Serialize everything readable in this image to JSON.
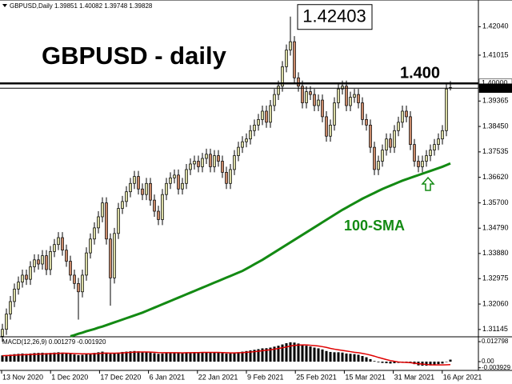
{
  "header": "GBPUSD,Daily  1.39851 1.40082 1.39748 1.39828",
  "chart_data": [
    {
      "type": "candlestick",
      "title": "GBPUSD - daily",
      "up_color": "#d9d9a3",
      "down_color": "#c98a6a",
      "open": [
        1.309,
        1.3115,
        1.317,
        1.3215,
        1.326,
        1.3285,
        1.331,
        1.3295,
        1.334,
        1.3365,
        1.335,
        1.338,
        1.333,
        1.3395,
        1.342,
        1.3445,
        1.34,
        1.336,
        1.331,
        1.328,
        1.325,
        1.331,
        1.339,
        1.344,
        1.348,
        1.352,
        1.357,
        1.344,
        1.33,
        1.346,
        1.355,
        1.3575,
        1.361,
        1.364,
        1.3665,
        1.362,
        1.36,
        1.364,
        1.358,
        1.354,
        1.351,
        1.36,
        1.364,
        1.366,
        1.367,
        1.362,
        1.364,
        1.369,
        1.371,
        1.372,
        1.37,
        1.373,
        1.3745,
        1.37,
        1.374,
        1.372,
        1.368,
        1.364,
        1.369,
        1.374,
        1.377,
        1.379,
        1.38,
        1.383,
        1.385,
        1.387,
        1.39,
        1.386,
        1.392,
        1.396,
        1.399,
        1.406,
        1.412,
        1.415,
        1.402,
        1.399,
        1.393,
        1.397,
        1.396,
        1.392,
        1.394,
        1.388,
        1.381,
        1.385,
        1.393,
        1.398,
        1.399,
        1.392,
        1.395,
        1.396,
        1.393,
        1.387,
        1.385,
        1.377,
        1.369,
        1.372,
        1.376,
        1.38,
        1.377,
        1.383,
        1.386,
        1.39,
        1.388,
        1.378,
        1.372,
        1.37,
        1.372,
        1.374,
        1.376,
        1.378,
        1.38,
        1.383,
        1.39851
      ],
      "high": [
        1.3135,
        1.319,
        1.3235,
        1.328,
        1.3305,
        1.333,
        1.333,
        1.336,
        1.3385,
        1.3385,
        1.34,
        1.34,
        1.3415,
        1.344,
        1.3465,
        1.3465,
        1.342,
        1.338,
        1.333,
        1.33,
        1.333,
        1.341,
        1.346,
        1.35,
        1.354,
        1.359,
        1.359,
        1.346,
        1.348,
        1.357,
        1.3595,
        1.363,
        1.366,
        1.3685,
        1.3685,
        1.364,
        1.366,
        1.366,
        1.36,
        1.356,
        1.362,
        1.366,
        1.368,
        1.369,
        1.369,
        1.366,
        1.371,
        1.373,
        1.374,
        1.374,
        1.375,
        1.3765,
        1.3765,
        1.376,
        1.376,
        1.374,
        1.37,
        1.371,
        1.376,
        1.379,
        1.381,
        1.382,
        1.385,
        1.387,
        1.389,
        1.392,
        1.392,
        1.394,
        1.398,
        1.401,
        1.408,
        1.414,
        1.42403,
        1.417,
        1.404,
        1.401,
        1.399,
        1.399,
        1.398,
        1.396,
        1.396,
        1.39,
        1.387,
        1.395,
        1.4,
        1.401,
        1.401,
        1.397,
        1.398,
        1.398,
        1.395,
        1.389,
        1.387,
        1.379,
        1.374,
        1.378,
        1.382,
        1.382,
        1.385,
        1.388,
        1.392,
        1.392,
        1.39,
        1.38,
        1.374,
        1.374,
        1.376,
        1.378,
        1.38,
        1.382,
        1.385,
        1.4,
        1.40082
      ],
      "low": [
        1.307,
        1.3095,
        1.315,
        1.3195,
        1.324,
        1.3265,
        1.3275,
        1.3275,
        1.332,
        1.333,
        1.333,
        1.331,
        1.331,
        1.3375,
        1.34,
        1.338,
        1.334,
        1.329,
        1.326,
        1.315,
        1.323,
        1.329,
        1.337,
        1.342,
        1.346,
        1.35,
        1.342,
        1.32,
        1.328,
        1.344,
        1.353,
        1.3555,
        1.359,
        1.362,
        1.36,
        1.358,
        1.358,
        1.356,
        1.352,
        1.349,
        1.349,
        1.358,
        1.362,
        1.364,
        1.36,
        1.36,
        1.362,
        1.367,
        1.369,
        1.368,
        1.368,
        1.371,
        1.368,
        1.368,
        1.37,
        1.366,
        1.362,
        1.362,
        1.367,
        1.372,
        1.375,
        1.377,
        1.378,
        1.381,
        1.383,
        1.385,
        1.384,
        1.384,
        1.39,
        1.394,
        1.397,
        1.404,
        1.41,
        1.4,
        1.397,
        1.391,
        1.391,
        1.394,
        1.39,
        1.39,
        1.386,
        1.379,
        1.379,
        1.383,
        1.391,
        1.396,
        1.39,
        1.39,
        1.393,
        1.391,
        1.385,
        1.383,
        1.375,
        1.367,
        1.367,
        1.37,
        1.374,
        1.375,
        1.375,
        1.381,
        1.384,
        1.386,
        1.376,
        1.37,
        1.368,
        1.368,
        1.37,
        1.372,
        1.374,
        1.376,
        1.378,
        1.381,
        1.39748
      ],
      "close": [
        1.3115,
        1.317,
        1.3215,
        1.326,
        1.3285,
        1.331,
        1.3295,
        1.334,
        1.3365,
        1.335,
        1.338,
        1.333,
        1.3395,
        1.342,
        1.3445,
        1.34,
        1.336,
        1.331,
        1.328,
        1.325,
        1.331,
        1.339,
        1.344,
        1.348,
        1.352,
        1.357,
        1.344,
        1.33,
        1.346,
        1.355,
        1.3575,
        1.361,
        1.364,
        1.3665,
        1.362,
        1.36,
        1.364,
        1.358,
        1.354,
        1.351,
        1.36,
        1.364,
        1.366,
        1.367,
        1.362,
        1.364,
        1.369,
        1.371,
        1.372,
        1.37,
        1.373,
        1.3745,
        1.37,
        1.374,
        1.372,
        1.368,
        1.364,
        1.369,
        1.374,
        1.377,
        1.379,
        1.38,
        1.383,
        1.385,
        1.387,
        1.39,
        1.386,
        1.392,
        1.396,
        1.399,
        1.406,
        1.412,
        1.415,
        1.402,
        1.399,
        1.393,
        1.397,
        1.396,
        1.392,
        1.394,
        1.388,
        1.381,
        1.385,
        1.393,
        1.398,
        1.399,
        1.392,
        1.395,
        1.396,
        1.393,
        1.387,
        1.385,
        1.377,
        1.369,
        1.372,
        1.376,
        1.38,
        1.377,
        1.383,
        1.386,
        1.39,
        1.388,
        1.378,
        1.372,
        1.37,
        1.372,
        1.374,
        1.376,
        1.378,
        1.38,
        1.383,
        1.398,
        1.39828
      ],
      "series": [
        {
          "name": "100-SMA",
          "color": "#138a13",
          "values": [
            null,
            null,
            null,
            null,
            null,
            null,
            null,
            null,
            null,
            null,
            null,
            null,
            null,
            null,
            null,
            null,
            null,
            1.309,
            1.3094,
            1.3099,
            1.3103,
            1.3108,
            1.3112,
            1.3116,
            1.3121,
            1.3125,
            1.313,
            1.3135,
            1.314,
            1.3145,
            1.315,
            1.3155,
            1.316,
            1.3165,
            1.317,
            1.3175,
            1.3181,
            1.3187,
            1.3193,
            1.3199,
            1.3205,
            1.3211,
            1.3217,
            1.3223,
            1.3229,
            1.3235,
            1.3241,
            1.3247,
            1.3253,
            1.3259,
            1.3265,
            1.3271,
            1.3277,
            1.3283,
            1.3289,
            1.3295,
            1.3301,
            1.3307,
            1.3313,
            1.3319,
            1.3325,
            1.3333,
            1.3341,
            1.3349,
            1.3357,
            1.3365,
            1.3374,
            1.3383,
            1.3392,
            1.3401,
            1.341,
            1.3419,
            1.3428,
            1.3437,
            1.3446,
            1.3455,
            1.3464,
            1.3473,
            1.3482,
            1.3491,
            1.35,
            1.3509,
            1.3518,
            1.3527,
            1.3536,
            1.3545,
            1.3553,
            1.3561,
            1.3569,
            1.3577,
            1.3585,
            1.3592,
            1.3599,
            1.3606,
            1.3613,
            1.362,
            1.3626,
            1.3632,
            1.3638,
            1.3644,
            1.365,
            1.3655,
            1.366,
            1.3665,
            1.367,
            1.3675,
            1.368,
            1.3685,
            1.369,
            1.3695,
            1.37,
            1.3706,
            1.3712
          ]
        }
      ],
      "ylim": [
        1.3091,
        1.43
      ],
      "yticks": [
        {
          "value": 1.4204,
          "label": "1.42040"
        },
        {
          "value": 1.41015,
          "label": "1.41015"
        },
        {
          "value": 1.39365,
          "label": "1.39365"
        },
        {
          "value": 1.3845,
          "label": "1.38450"
        },
        {
          "value": 1.37535,
          "label": "1.37535"
        },
        {
          "value": 1.3662,
          "label": "1.36620"
        },
        {
          "value": 1.357,
          "label": "1.35700"
        },
        {
          "value": 1.3479,
          "label": "1.34790"
        },
        {
          "value": 1.3388,
          "label": "1.33880"
        },
        {
          "value": 1.32975,
          "label": "1.32975"
        },
        {
          "value": 1.3206,
          "label": "1.32060"
        },
        {
          "value": 1.31145,
          "label": "1.31145"
        }
      ],
      "price_labels": [
        {
          "value": 1.4,
          "label": "1.40000"
        },
        {
          "value": 1.39828,
          "label": "1.39828"
        }
      ],
      "annotations": [
        {
          "value": 1.42403,
          "label": "1.42403"
        },
        {
          "value": 1.4,
          "label": "1.400"
        }
      ],
      "x_labels": [
        "13 Nov 2020",
        "1 Dec 2020",
        "17 Dec 2020",
        "6 Jan 2021",
        "22 Jan 2021",
        "9 Feb 2021",
        "25 Feb 2021",
        "15 Mar 2021",
        "31 Mar 2021",
        "16 Apr 2021"
      ]
    },
    {
      "type": "macd",
      "label": "MACD(12,26,9) 0.001279 -0.001920",
      "histogram_color": "#000000",
      "signal_color": "#e00000",
      "histogram": [
        0.004,
        0.0042,
        0.0045,
        0.0048,
        0.005,
        0.0052,
        0.005,
        0.0052,
        0.0055,
        0.0056,
        0.0057,
        0.0055,
        0.0056,
        0.0058,
        0.006,
        0.0058,
        0.0054,
        0.005,
        0.0046,
        0.0042,
        0.0044,
        0.0048,
        0.0052,
        0.0056,
        0.006,
        0.0064,
        0.0058,
        0.005,
        0.0054,
        0.0058,
        0.0062,
        0.0064,
        0.0066,
        0.0068,
        0.0066,
        0.0063,
        0.0062,
        0.0058,
        0.0054,
        0.005,
        0.0052,
        0.0054,
        0.0056,
        0.0057,
        0.0055,
        0.0055,
        0.0057,
        0.0059,
        0.006,
        0.0059,
        0.006,
        0.0061,
        0.0059,
        0.006,
        0.0058,
        0.0055,
        0.0052,
        0.0053,
        0.0056,
        0.006,
        0.0064,
        0.0068,
        0.0072,
        0.0076,
        0.008,
        0.0085,
        0.0086,
        0.009,
        0.0096,
        0.0102,
        0.011,
        0.0118,
        0.0124,
        0.0122,
        0.0116,
        0.0108,
        0.0102,
        0.0097,
        0.009,
        0.0085,
        0.0078,
        0.0068,
        0.0062,
        0.006,
        0.006,
        0.0058,
        0.0052,
        0.005,
        0.0048,
        0.0044,
        0.0036,
        0.0028,
        0.0016,
        0.0004,
        -0.0004,
        -0.0008,
        -0.001,
        -0.0012,
        -0.001,
        -0.0008,
        -0.0004,
        -0.0002,
        -0.0006,
        -0.0016,
        -0.0024,
        -0.0026,
        -0.0026,
        -0.0024,
        -0.002,
        -0.0016,
        -0.0012,
        -0.0002,
        0.001279
      ],
      "signal": [
        0.0038,
        0.0039,
        0.004,
        0.0041,
        0.0043,
        0.0044,
        0.0045,
        0.0046,
        0.0047,
        0.0048,
        0.0049,
        0.005,
        0.0051,
        0.0052,
        0.0053,
        0.0054,
        0.0054,
        0.0053,
        0.0052,
        0.0051,
        0.005,
        0.005,
        0.005,
        0.0051,
        0.0052,
        0.0054,
        0.0055,
        0.0054,
        0.0054,
        0.0055,
        0.0056,
        0.0058,
        0.0059,
        0.0061,
        0.0062,
        0.0062,
        0.0062,
        0.0061,
        0.006,
        0.0058,
        0.0057,
        0.0057,
        0.0057,
        0.0057,
        0.0057,
        0.0056,
        0.0057,
        0.0057,
        0.0058,
        0.0058,
        0.0059,
        0.0059,
        0.0059,
        0.0059,
        0.0059,
        0.0058,
        0.0057,
        0.0056,
        0.0056,
        0.0057,
        0.0058,
        0.006,
        0.0062,
        0.0064,
        0.0067,
        0.007,
        0.0073,
        0.0076,
        0.008,
        0.0084,
        0.0089,
        0.0094,
        0.01,
        0.0104,
        0.0106,
        0.0107,
        0.0107,
        0.0105,
        0.0103,
        0.01,
        0.0096,
        0.0091,
        0.0085,
        0.008,
        0.0076,
        0.0072,
        0.0068,
        0.0064,
        0.006,
        0.0057,
        0.0053,
        0.0048,
        0.0042,
        0.0035,
        0.0027,
        0.002,
        0.0013,
        0.0007,
        0.0002,
        -0.0002,
        -0.0004,
        -0.0005,
        -0.0007,
        -0.001,
        -0.0013,
        -0.0016,
        -0.0018,
        -0.002,
        -0.0021,
        -0.0021,
        -0.0021,
        -0.002,
        -0.00192
      ],
      "ylim": [
        -0.0051,
        0.0154
      ],
      "yticks": [
        {
          "value": 0.012798,
          "label": "0.012798"
        },
        {
          "value": 0,
          "label": "0.00"
        },
        {
          "value": -0.003929,
          "label": "-0.003929"
        }
      ]
    }
  ]
}
